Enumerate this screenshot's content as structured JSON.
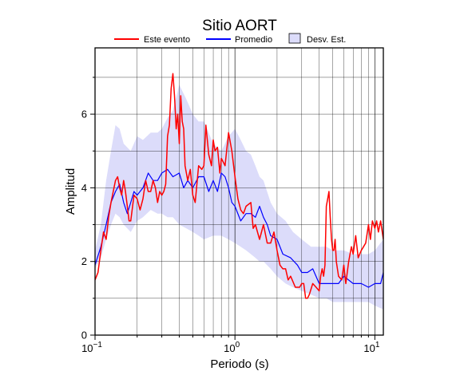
{
  "chart_data": {
    "type": "line",
    "title": "Sitio AORT",
    "xlabel": "Periodo (s)",
    "ylabel": "Amplitud",
    "x_scale": "log",
    "xlim": [
      0.1,
      11.5
    ],
    "ylim": [
      0,
      7.8
    ],
    "grid": true,
    "legend_position": "top",
    "x_ticks": [
      {
        "value": 0.1,
        "base": "10",
        "exp": "−1"
      },
      {
        "value": 1,
        "base": "10",
        "exp": "0"
      },
      {
        "value": 10,
        "base": "10",
        "exp": "1"
      }
    ],
    "y_ticks": [
      0,
      2,
      4,
      6
    ],
    "legend": [
      {
        "label": "Este evento",
        "kind": "line",
        "color": "#ff0000"
      },
      {
        "label": "Promedio",
        "kind": "line",
        "color": "#0000ff"
      },
      {
        "label": "Desv. Est.",
        "kind": "area",
        "color": "#dcdcfa"
      }
    ],
    "series": [
      {
        "name": "Desv. Est.",
        "type": "band",
        "color": "#dcdcfa",
        "x": [
          0.1,
          0.11,
          0.12,
          0.13,
          0.14,
          0.15,
          0.16,
          0.18,
          0.2,
          0.22,
          0.25,
          0.28,
          0.3,
          0.33,
          0.36,
          0.4,
          0.45,
          0.5,
          0.55,
          0.6,
          0.7,
          0.8,
          0.9,
          1.0,
          1.1,
          1.2,
          1.3,
          1.4,
          1.5,
          1.6,
          1.8,
          2.0,
          2.3,
          2.6,
          3.0,
          3.5,
          4.0,
          4.5,
          5.0,
          6.0,
          7.0,
          8.0,
          9.0,
          10.0,
          11.5
        ],
        "upper": [
          2.3,
          3.0,
          4.2,
          5.0,
          5.7,
          5.6,
          5.2,
          5.0,
          5.4,
          5.3,
          5.5,
          5.5,
          5.6,
          5.9,
          6.1,
          6.8,
          6.4,
          6.0,
          5.8,
          5.8,
          5.2,
          5.0,
          5.4,
          5.6,
          5.3,
          5.0,
          4.9,
          4.6,
          4.3,
          4.2,
          3.6,
          3.3,
          3.1,
          2.8,
          2.6,
          2.4,
          2.4,
          2.4,
          2.3,
          2.3,
          2.2,
          2.2,
          2.2,
          2.3,
          2.6
        ],
        "lower": [
          1.8,
          2.1,
          2.6,
          3.0,
          3.3,
          3.2,
          3.0,
          2.8,
          3.1,
          3.2,
          3.4,
          3.3,
          3.3,
          3.2,
          3.2,
          3.0,
          2.9,
          2.8,
          2.7,
          2.6,
          2.7,
          2.7,
          2.6,
          2.5,
          2.4,
          2.3,
          2.2,
          2.1,
          2.0,
          2.0,
          1.8,
          1.6,
          1.4,
          1.3,
          1.2,
          1.1,
          1.0,
          1.0,
          0.9,
          0.9,
          0.9,
          0.9,
          0.9,
          0.8,
          0.7
        ]
      },
      {
        "name": "Promedio",
        "type": "line",
        "color": "#0000ff",
        "x": [
          0.1,
          0.11,
          0.12,
          0.13,
          0.14,
          0.15,
          0.16,
          0.17,
          0.18,
          0.19,
          0.2,
          0.22,
          0.24,
          0.26,
          0.28,
          0.3,
          0.33,
          0.36,
          0.4,
          0.43,
          0.46,
          0.5,
          0.55,
          0.6,
          0.65,
          0.7,
          0.75,
          0.8,
          0.85,
          0.9,
          0.95,
          1.0,
          1.1,
          1.2,
          1.3,
          1.4,
          1.5,
          1.6,
          1.7,
          1.8,
          2.0,
          2.2,
          2.5,
          2.8,
          3.0,
          3.3,
          3.6,
          4.0,
          4.5,
          5.0,
          5.5,
          6.0,
          7.0,
          8.0,
          9.0,
          10.0,
          11.0,
          11.5
        ],
        "y": [
          1.9,
          2.4,
          3.0,
          3.6,
          3.9,
          4.1,
          3.6,
          3.3,
          3.6,
          3.9,
          3.8,
          4.0,
          4.4,
          4.2,
          4.2,
          4.4,
          4.5,
          4.3,
          4.4,
          4.0,
          4.2,
          4.0,
          4.3,
          4.3,
          3.9,
          4.2,
          3.9,
          4.4,
          4.3,
          4.0,
          3.6,
          3.5,
          3.1,
          3.3,
          3.3,
          3.2,
          3.5,
          3.2,
          3.0,
          2.7,
          2.6,
          2.2,
          2.1,
          1.9,
          1.7,
          1.7,
          1.8,
          1.4,
          1.4,
          1.4,
          1.4,
          1.6,
          1.4,
          1.4,
          1.3,
          1.4,
          1.4,
          1.7
        ]
      },
      {
        "name": "Este evento",
        "type": "line",
        "color": "#ff0000",
        "x": [
          0.1,
          0.105,
          0.11,
          0.115,
          0.12,
          0.125,
          0.13,
          0.135,
          0.14,
          0.145,
          0.15,
          0.155,
          0.16,
          0.165,
          0.17,
          0.175,
          0.18,
          0.19,
          0.2,
          0.21,
          0.22,
          0.23,
          0.24,
          0.25,
          0.26,
          0.27,
          0.28,
          0.29,
          0.3,
          0.31,
          0.32,
          0.33,
          0.34,
          0.35,
          0.36,
          0.37,
          0.38,
          0.39,
          0.4,
          0.41,
          0.42,
          0.43,
          0.44,
          0.46,
          0.48,
          0.5,
          0.52,
          0.55,
          0.58,
          0.6,
          0.62,
          0.65,
          0.68,
          0.7,
          0.72,
          0.75,
          0.78,
          0.8,
          0.85,
          0.9,
          0.95,
          1.0,
          1.05,
          1.1,
          1.15,
          1.2,
          1.3,
          1.35,
          1.4,
          1.5,
          1.6,
          1.7,
          1.8,
          1.9,
          2.0,
          2.1,
          2.2,
          2.3,
          2.4,
          2.5,
          2.7,
          2.9,
          3.0,
          3.1,
          3.2,
          3.3,
          3.4,
          3.6,
          3.8,
          4.0,
          4.1,
          4.2,
          4.3,
          4.4,
          4.5,
          4.6,
          4.7,
          4.8,
          4.9,
          5.0,
          5.1,
          5.2,
          5.3,
          5.5,
          5.8,
          6.0,
          6.2,
          6.5,
          6.8,
          7.0,
          7.3,
          7.6,
          8.0,
          8.3,
          8.6,
          9.0,
          9.3,
          9.6,
          10.0,
          10.3,
          10.6,
          11.0,
          11.5
        ],
        "y": [
          1.5,
          1.7,
          2.3,
          2.8,
          2.6,
          3.2,
          3.6,
          3.9,
          4.2,
          4.3,
          4.0,
          3.8,
          4.2,
          3.9,
          3.5,
          3.1,
          3.1,
          3.8,
          3.7,
          3.4,
          3.7,
          4.2,
          3.9,
          3.9,
          4.2,
          4.0,
          3.6,
          3.9,
          3.8,
          3.9,
          4.1,
          5.4,
          5.7,
          6.7,
          7.1,
          6.5,
          5.6,
          6.0,
          5.2,
          6.5,
          5.8,
          5.6,
          4.6,
          4.2,
          4.5,
          3.8,
          3.6,
          4.6,
          4.5,
          4.6,
          5.7,
          4.9,
          4.6,
          5.3,
          5.0,
          5.1,
          4.4,
          4.8,
          4.6,
          5.5,
          5.0,
          4.3,
          3.7,
          3.4,
          3.3,
          3.5,
          3.6,
          2.9,
          3.0,
          2.6,
          3.0,
          2.5,
          2.5,
          2.8,
          2.3,
          1.9,
          1.8,
          1.8,
          1.5,
          1.6,
          1.3,
          1.3,
          1.4,
          1.4,
          1.0,
          1.0,
          1.1,
          1.4,
          1.3,
          1.2,
          1.6,
          1.8,
          1.6,
          1.9,
          3.5,
          3.7,
          3.9,
          3.2,
          2.6,
          2.3,
          2.3,
          2.6,
          2.0,
          1.6,
          1.5,
          1.9,
          1.4,
          2.0,
          2.4,
          2.2,
          2.7,
          2.1,
          2.3,
          2.4,
          2.5,
          3.0,
          2.6,
          3.1,
          2.9,
          3.1,
          2.8,
          3.1,
          2.6
        ]
      }
    ]
  }
}
